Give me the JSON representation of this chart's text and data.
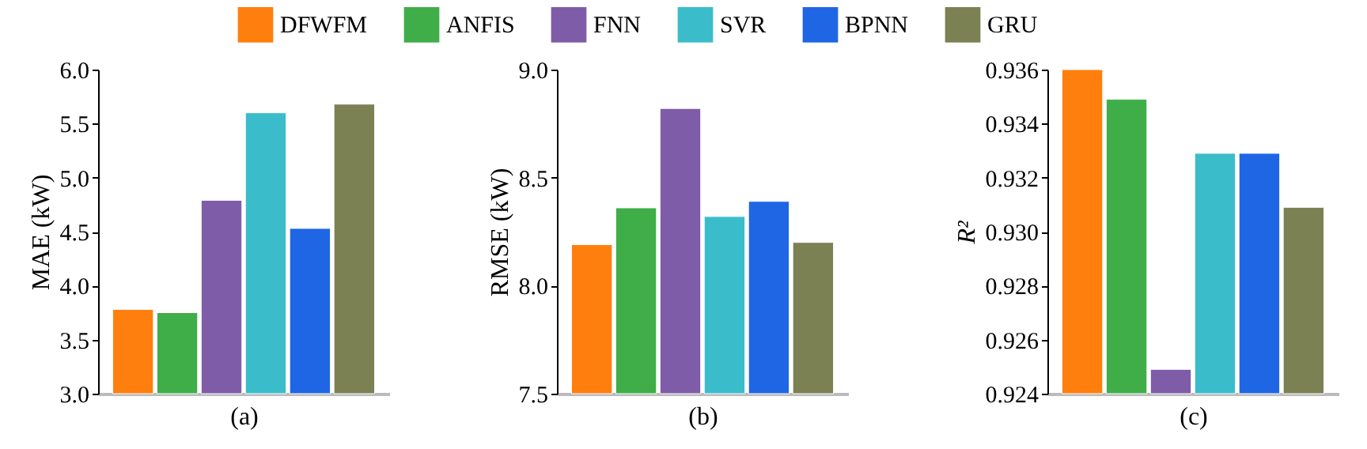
{
  "chart_data": [
    {
      "type": "bar",
      "categories": [
        null
      ],
      "xlabel": "(a)",
      "ylabel": "MAE (kW)",
      "ylim": [
        3.0,
        6.0
      ],
      "yticks": [
        {
          "value": 3,
          "label": "3.0"
        },
        3.5,
        {
          "value": 4,
          "label": "4.0"
        },
        4.5,
        {
          "value": 5,
          "label": "5.0"
        },
        5.5,
        {
          "value": 6,
          "label": "6.0"
        }
      ],
      "grid": false,
      "legend": "top",
      "series": [
        {
          "name": "DFWFM",
          "color": "#ff7f0e",
          "values": [
            3.78
          ]
        },
        {
          "name": "ANFIS",
          "color": "#3fae49",
          "values": [
            3.75
          ]
        },
        {
          "name": "FNN",
          "color": "#7f5ca8",
          "values": [
            4.79
          ]
        },
        {
          "name": "SVR",
          "color": "#3bbccb",
          "values": [
            5.6
          ]
        },
        {
          "name": "BPNN",
          "color": "#1f66e5",
          "values": [
            4.53
          ]
        },
        {
          "name": "GRU",
          "color": "#7b8152",
          "values": [
            5.68
          ]
        }
      ]
    },
    {
      "type": "bar",
      "categories": [
        null
      ],
      "xlabel": "(b)",
      "ylabel": "RMSE (kW)",
      "ylim": [
        7.5,
        9.0
      ],
      "yticks": [
        7.5,
        {
          "value": 8,
          "label": "8.0"
        },
        8.5,
        {
          "value": 9,
          "label": "9.0"
        }
      ],
      "grid": false,
      "series": [
        {
          "color": "#ff7f0e",
          "values": [
            8.19
          ]
        },
        {
          "color": "#3fae49",
          "values": [
            8.36
          ]
        },
        {
          "color": "#7f5ca8",
          "values": [
            8.82
          ]
        },
        {
          "color": "#3bbccb",
          "values": [
            8.32
          ]
        },
        {
          "color": "#1f66e5",
          "values": [
            8.39
          ]
        },
        {
          "color": "#7b8152",
          "values": [
            8.2
          ]
        }
      ]
    },
    {
      "type": "bar",
      "categories": [
        null
      ],
      "xlabel": "(c)",
      "ylabel": "R²",
      "ylim": [
        0.924,
        0.936
      ],
      "yticks": [
        0.924,
        0.926,
        0.928,
        {
          "value": 0.93,
          "label": "0.930"
        },
        0.932,
        0.934,
        0.936
      ],
      "grid": false,
      "series": [
        {
          "color": "#ff7f0e",
          "values": [
            0.936
          ]
        },
        {
          "color": "#3fae49",
          "values": [
            0.9349
          ]
        },
        {
          "color": "#7f5ca8",
          "values": [
            0.9249
          ]
        },
        {
          "color": "#3bbccb",
          "values": [
            0.9329
          ]
        },
        {
          "color": "#1f66e5",
          "values": [
            0.9329
          ]
        },
        {
          "color": "#7b8152",
          "values": [
            0.9309
          ]
        }
      ]
    }
  ]
}
